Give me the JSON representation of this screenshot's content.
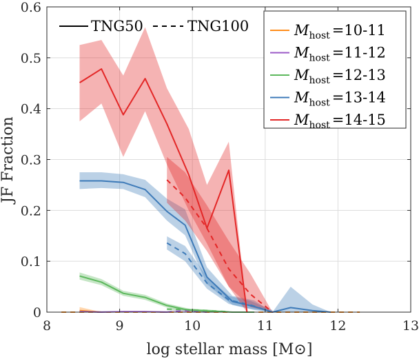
{
  "chart_data": {
    "type": "line",
    "title": "",
    "xlabel": "log stellar mass [M⊙]",
    "ylabel": "JF Fraction",
    "xlim": [
      8,
      13
    ],
    "ylim": [
      0,
      0.6
    ],
    "xticks": [
      8,
      9,
      10,
      11,
      12,
      13
    ],
    "yticks": [
      0,
      0.1,
      0.2,
      0.3,
      0.4,
      0.5,
      0.6
    ],
    "xtick_labels": [
      "8",
      "9",
      "10",
      "11",
      "12",
      "13"
    ],
    "ytick_labels": [
      "0",
      "0.1",
      "0.2",
      "0.3",
      "0.4",
      "0.5",
      "0.6"
    ],
    "grid": true,
    "style_legend": {
      "solid_label": "TNG50",
      "dashed_label": "TNG100",
      "placement": "top-left"
    },
    "legend": {
      "placement": "top-right",
      "prefix": "M",
      "subscript": "host",
      "entries": [
        "=10-11",
        "=11-12",
        "=12-13",
        "=13-14",
        "=14-15"
      ]
    },
    "series": [
      {
        "name": "Mhost=10-11",
        "color": "#ff8c1a",
        "solid": {
          "x": [
            8.45,
            8.75
          ],
          "y": [
            0.003,
            0.0
          ],
          "lo": [
            0.0,
            0.0
          ],
          "hi": [
            0.01,
            0.0
          ]
        },
        "dashed": {
          "x": [
            8.2,
            8.45,
            9.0,
            12.1,
            12.3
          ],
          "y": [
            0.0,
            0.0,
            0.0,
            0.0,
            0.0
          ],
          "lo": [
            0,
            0,
            0,
            0,
            0
          ],
          "hi": [
            0,
            0,
            0,
            0,
            0
          ]
        }
      },
      {
        "name": "Mhost=11-12",
        "color": "#9b59c7",
        "solid": {
          "x": [
            8.45,
            8.75,
            9.05,
            9.35,
            9.65
          ],
          "y": [
            0.001,
            0.0,
            0.001,
            0.001,
            0.0
          ],
          "lo": [
            0,
            0,
            0,
            0,
            0
          ],
          "hi": [
            0.003,
            0.002,
            0.002,
            0.002,
            0.002
          ]
        },
        "dashed": {
          "x": [
            9.65,
            9.9,
            10.2
          ],
          "y": [
            0.0,
            0.003,
            0.0
          ],
          "lo": [
            0,
            0,
            0
          ],
          "hi": [
            0.002,
            0.006,
            0.002
          ]
        }
      },
      {
        "name": "Mhost=12-13",
        "color": "#5cb85c",
        "solid": {
          "x": [
            8.45,
            8.75,
            9.05,
            9.35,
            9.65,
            9.95,
            10.25,
            10.55,
            10.85
          ],
          "y": [
            0.071,
            0.059,
            0.037,
            0.029,
            0.013,
            0.004,
            0.002,
            0.0,
            0.0
          ],
          "lo": [
            0.064,
            0.053,
            0.032,
            0.024,
            0.009,
            0.002,
            0.0,
            0.0,
            0.0
          ],
          "hi": [
            0.078,
            0.065,
            0.042,
            0.034,
            0.017,
            0.007,
            0.004,
            0.001,
            0.0
          ]
        },
        "dashed": {
          "x": [
            9.65,
            9.9,
            10.2,
            10.5
          ],
          "y": [
            0.006,
            0.005,
            0.003,
            0.001
          ],
          "lo": [
            0.004,
            0.003,
            0.001,
            0.0
          ],
          "hi": [
            0.008,
            0.007,
            0.005,
            0.002
          ]
        }
      },
      {
        "name": "Mhost=13-14",
        "color": "#3d7ab8",
        "solid": {
          "x": [
            8.45,
            8.75,
            9.05,
            9.35,
            9.65,
            9.9,
            10.2,
            10.55,
            10.85,
            11.1,
            11.35,
            11.65,
            11.9
          ],
          "y": [
            0.258,
            0.258,
            0.255,
            0.241,
            0.198,
            0.171,
            0.069,
            0.021,
            0.011,
            0.0,
            0.009,
            0.003,
            0.0
          ],
          "lo": [
            0.242,
            0.244,
            0.242,
            0.226,
            0.18,
            0.151,
            0.055,
            0.014,
            0.004,
            0.0,
            0.0,
            0.0,
            0.0
          ],
          "hi": [
            0.275,
            0.275,
            0.271,
            0.26,
            0.223,
            0.202,
            0.088,
            0.032,
            0.023,
            0.0,
            0.05,
            0.015,
            0.0
          ]
        },
        "dashed": {
          "x": [
            9.65,
            9.9,
            10.2,
            10.5,
            10.8,
            11.1
          ],
          "y": [
            0.136,
            0.115,
            0.057,
            0.024,
            0.014,
            0.0
          ],
          "lo": [
            0.123,
            0.1,
            0.046,
            0.016,
            0.007,
            0.0
          ],
          "hi": [
            0.149,
            0.13,
            0.07,
            0.032,
            0.022,
            0.004
          ]
        }
      },
      {
        "name": "Mhost=14-15",
        "color": "#e32626",
        "solid": {
          "x": [
            8.45,
            8.75,
            9.05,
            9.35,
            9.65,
            9.95,
            10.2,
            10.5,
            10.75
          ],
          "y": [
            0.451,
            0.478,
            0.388,
            0.459,
            0.37,
            0.27,
            0.165,
            0.279,
            0.0
          ],
          "lo": [
            0.375,
            0.41,
            0.305,
            0.395,
            0.29,
            0.2,
            0.135,
            0.05,
            0.0
          ],
          "hi": [
            0.525,
            0.535,
            0.465,
            0.56,
            0.44,
            0.36,
            0.25,
            0.335,
            0.0
          ]
        },
        "dashed": {
          "x": [
            9.65,
            9.9,
            10.2,
            10.5,
            10.8,
            11.1
          ],
          "y": [
            0.26,
            0.225,
            0.165,
            0.085,
            0.035,
            0.0
          ],
          "lo": [
            0.215,
            0.18,
            0.12,
            0.05,
            0.01,
            0.0
          ],
          "hi": [
            0.305,
            0.275,
            0.21,
            0.14,
            0.075,
            0.0
          ]
        }
      }
    ]
  }
}
